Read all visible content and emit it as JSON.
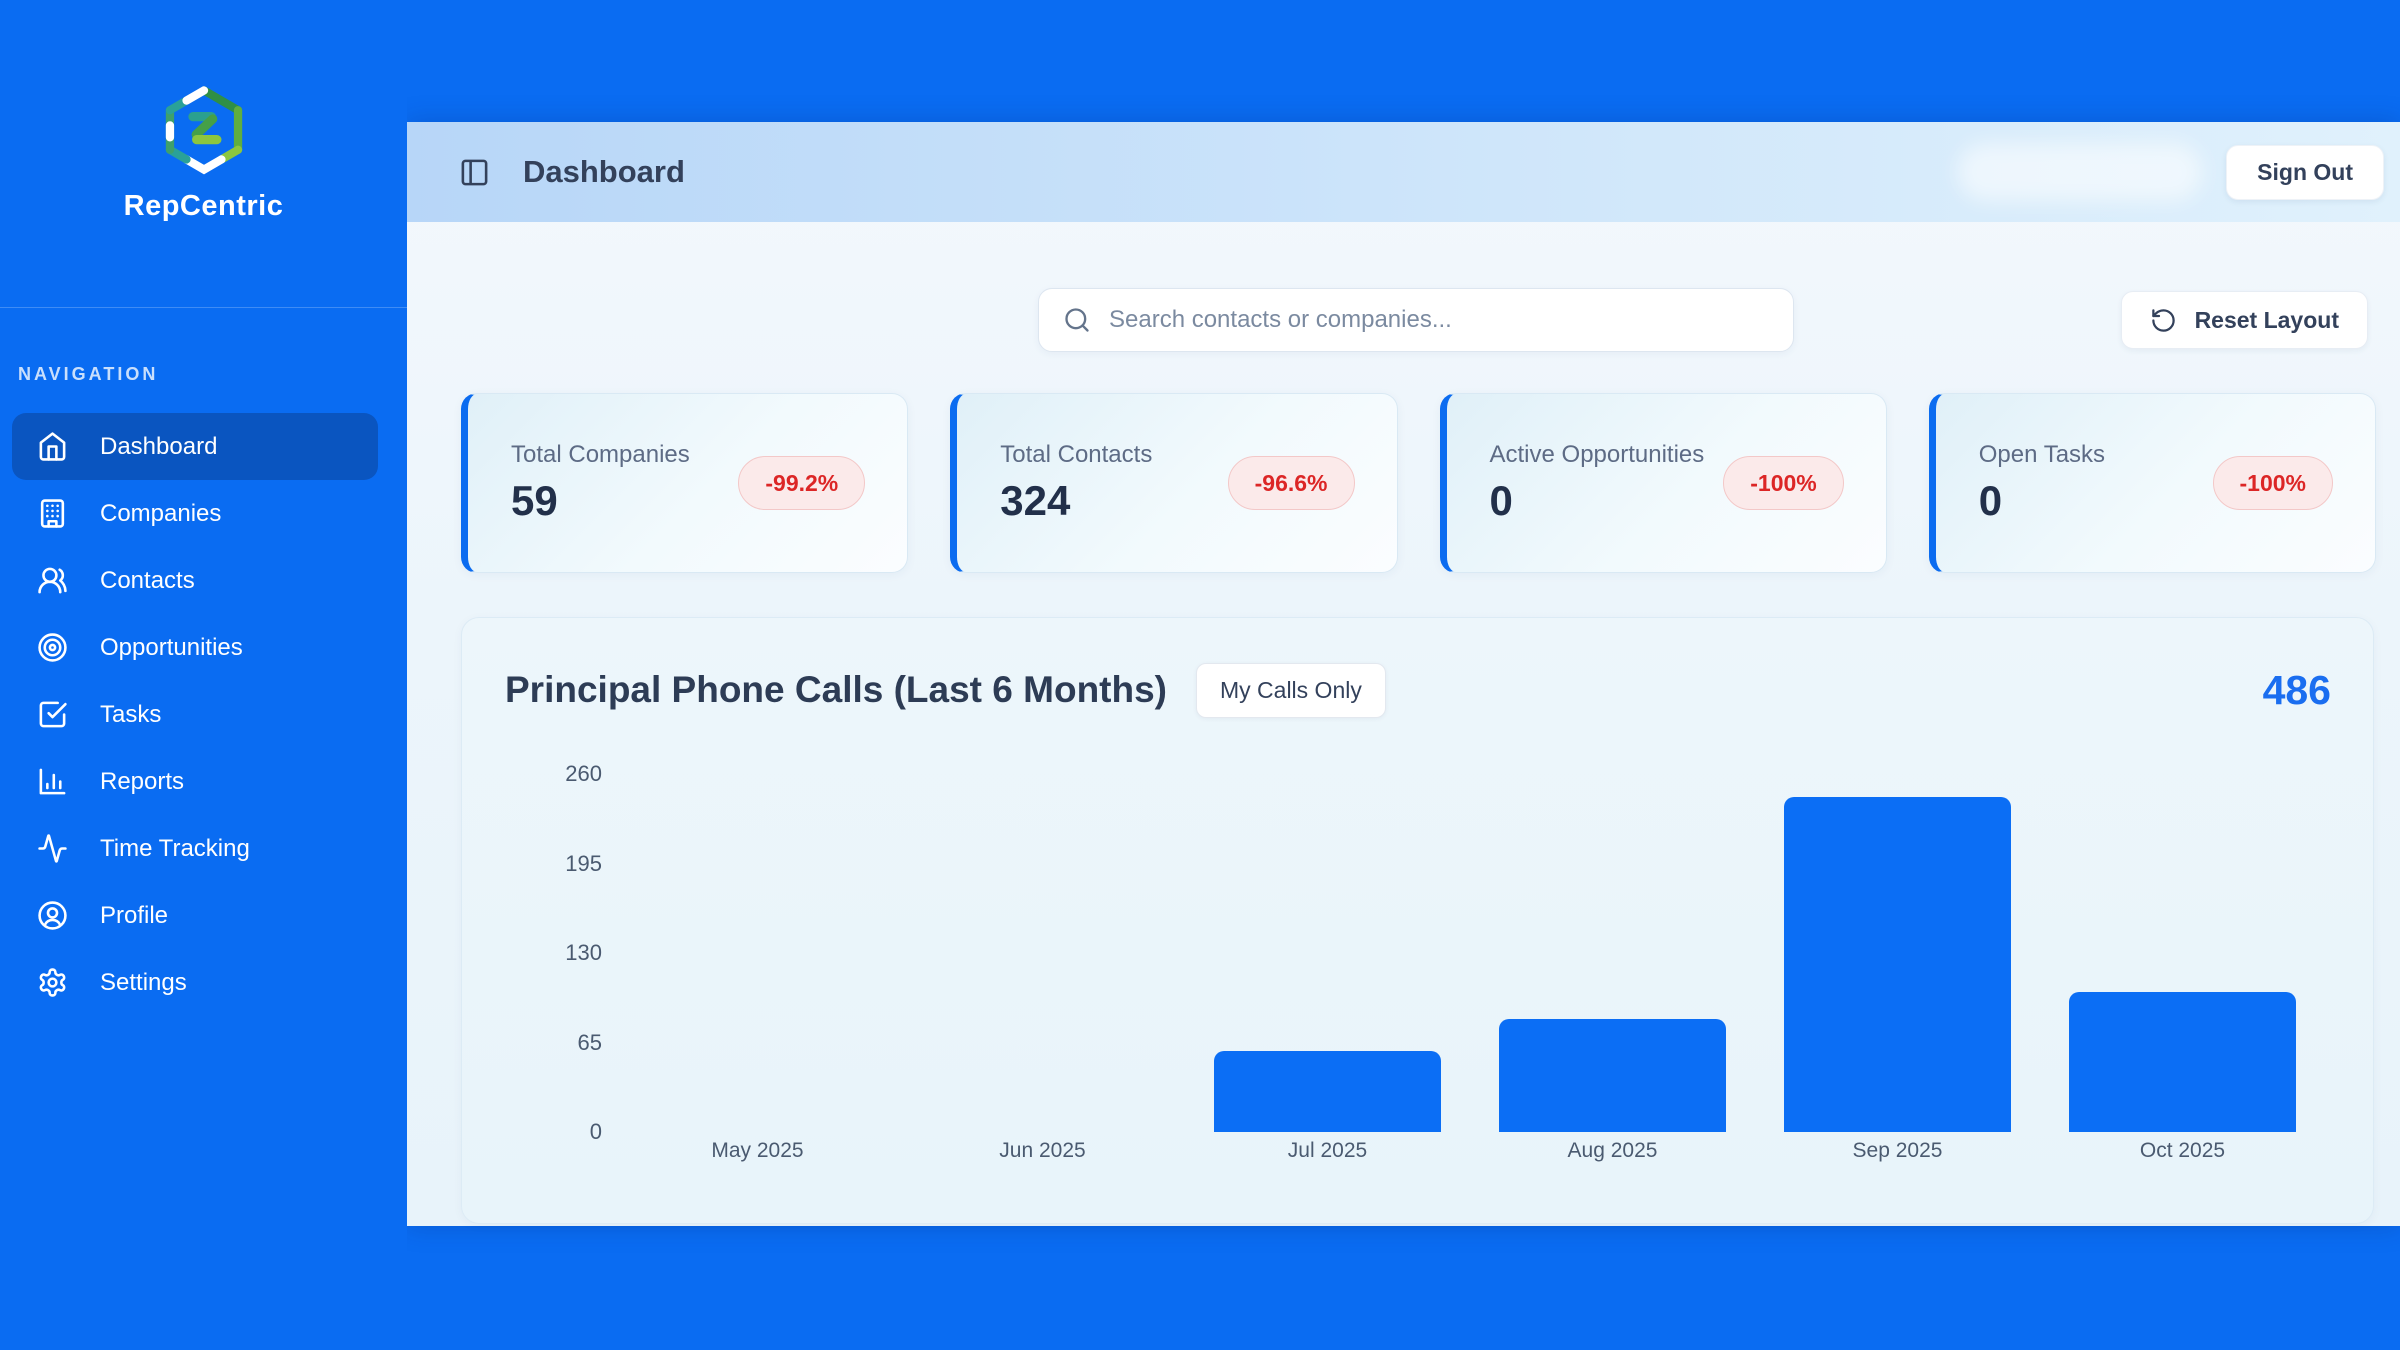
{
  "app": {
    "brand": "RepCentric"
  },
  "colors": {
    "page_blue": "#0a6cf2",
    "active_nav_blue": "#0a55c0",
    "bar_blue": "#0b6ef5",
    "accent_blue": "#1a6ef0",
    "badge_red": "#dc2626",
    "badge_bg": "#fbeaea"
  },
  "sidebar": {
    "section_label": "NAVIGATION",
    "items": [
      {
        "label": "Dashboard",
        "icon": "home-icon",
        "active": true
      },
      {
        "label": "Companies",
        "icon": "building-icon",
        "active": false
      },
      {
        "label": "Contacts",
        "icon": "users-icon",
        "active": false
      },
      {
        "label": "Opportunities",
        "icon": "target-icon",
        "active": false
      },
      {
        "label": "Tasks",
        "icon": "check-square-icon",
        "active": false
      },
      {
        "label": "Reports",
        "icon": "bar-chart-icon",
        "active": false
      },
      {
        "label": "Time Tracking",
        "icon": "activity-icon",
        "active": false
      },
      {
        "label": "Profile",
        "icon": "user-circle-icon",
        "active": false
      },
      {
        "label": "Settings",
        "icon": "gear-icon",
        "active": false
      }
    ]
  },
  "header": {
    "title": "Dashboard",
    "sign_out_label": "Sign Out"
  },
  "toolbar": {
    "search_placeholder": "Search contacts or companies...",
    "reset_label": "Reset Layout"
  },
  "stats": [
    {
      "label": "Total Companies",
      "value": "59",
      "delta": "-99.2%"
    },
    {
      "label": "Total Contacts",
      "value": "324",
      "delta": "-96.6%"
    },
    {
      "label": "Active Opportunities",
      "value": "0",
      "delta": "-100%"
    },
    {
      "label": "Open Tasks",
      "value": "0",
      "delta": "-100%"
    }
  ],
  "chart_card": {
    "title": "Principal Phone Calls (Last 6 Months)",
    "toggle_label": "My Calls Only",
    "total": "486"
  },
  "chart_data": {
    "type": "bar",
    "title": "Principal Phone Calls (Last 6 Months)",
    "categories": [
      "May 2025",
      "Jun 2025",
      "Jul 2025",
      "Aug 2025",
      "Sep 2025",
      "Oct 2025"
    ],
    "values": [
      0,
      0,
      59,
      82,
      243,
      102
    ],
    "total": 486,
    "xlabel": "",
    "ylabel": "",
    "ylim": [
      0,
      260
    ],
    "yticks": [
      0,
      65,
      130,
      195,
      260
    ],
    "grid": false,
    "legend": false,
    "bar_color": "#0b6ef5"
  }
}
